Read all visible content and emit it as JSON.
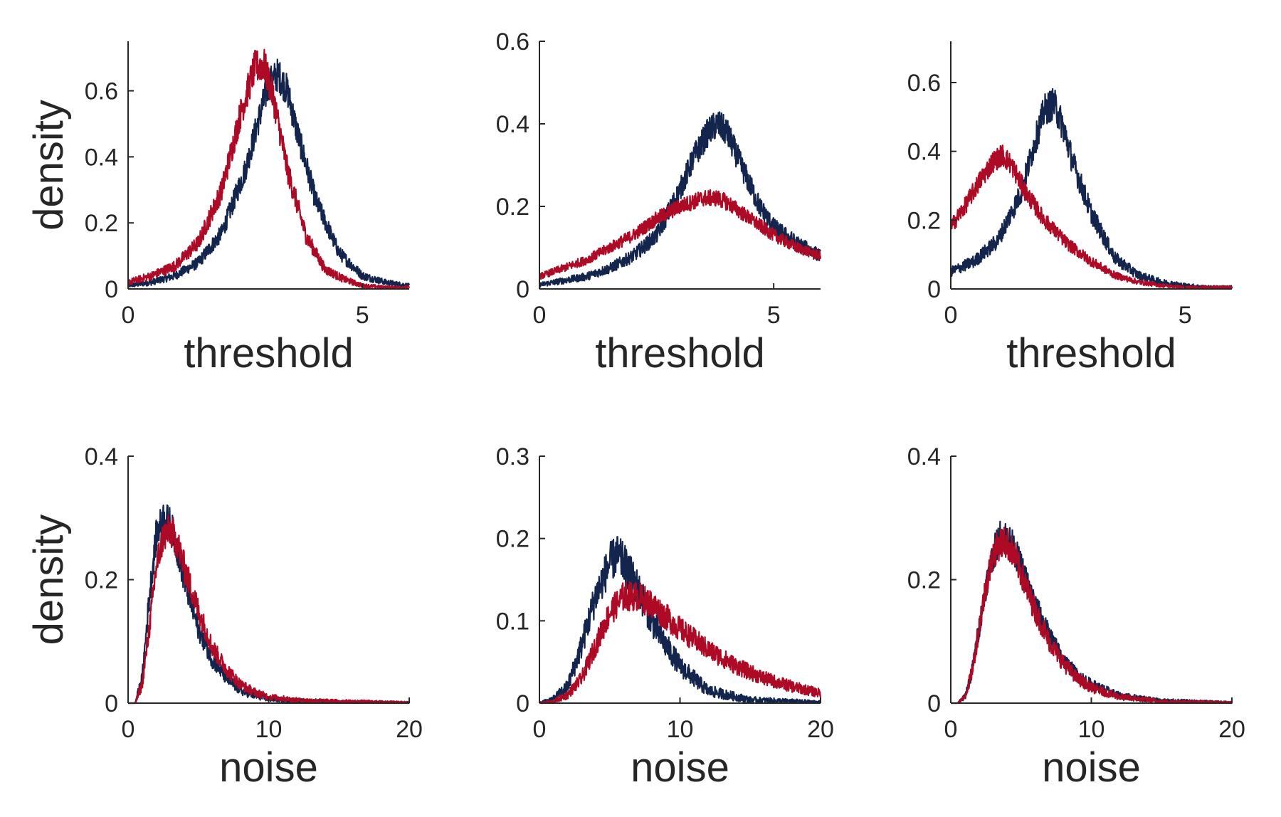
{
  "colors": {
    "navy": "#14254d",
    "red": "#ad0a26",
    "axis": "#262626"
  },
  "chart_data": [
    {
      "type": "line",
      "xlabel": "threshold",
      "ylabel": "density",
      "xlim": [
        0,
        6
      ],
      "ylim": [
        0,
        0.75
      ],
      "xticks": [
        0,
        5
      ],
      "yticks": [
        0,
        0.2,
        0.4,
        0.6
      ],
      "xtick_labels": [
        "0",
        "5"
      ],
      "ytick_labels": [
        "0",
        "0.2",
        "0.4",
        "0.6"
      ],
      "grid": false,
      "legend": "none",
      "series": [
        {
          "color": "#14254d",
          "noise": 0.05,
          "x": [
            0,
            0.5,
            1,
            1.5,
            2,
            2.5,
            2.8,
            3.0,
            3.2,
            3.4,
            3.6,
            4.0,
            4.5,
            5.0,
            5.5,
            6.0
          ],
          "y": [
            0.01,
            0.02,
            0.04,
            0.08,
            0.17,
            0.36,
            0.52,
            0.62,
            0.65,
            0.6,
            0.48,
            0.27,
            0.11,
            0.04,
            0.02,
            0.01
          ]
        },
        {
          "color": "#ad0a26",
          "noise": 0.05,
          "x": [
            0,
            0.5,
            1,
            1.5,
            2,
            2.4,
            2.7,
            2.9,
            3.1,
            3.4,
            3.8,
            4.2,
            4.6,
            5.0,
            5.5,
            6.0
          ],
          "y": [
            0.02,
            0.04,
            0.07,
            0.14,
            0.3,
            0.53,
            0.67,
            0.68,
            0.58,
            0.36,
            0.16,
            0.06,
            0.03,
            0.01,
            0.005,
            0.005
          ]
        }
      ]
    },
    {
      "type": "line",
      "xlabel": "threshold",
      "ylabel": "",
      "xlim": [
        0,
        6
      ],
      "ylim": [
        0,
        0.6
      ],
      "xticks": [
        0,
        5
      ],
      "yticks": [
        0,
        0.2,
        0.4,
        0.6
      ],
      "xtick_labels": [
        "0",
        "5"
      ],
      "ytick_labels": [
        "0",
        "0.2",
        "0.4",
        "0.6"
      ],
      "grid": false,
      "legend": "none",
      "series": [
        {
          "color": "#14254d",
          "noise": 0.04,
          "x": [
            0,
            0.5,
            1,
            1.5,
            2,
            2.5,
            3.0,
            3.3,
            3.6,
            3.8,
            4.0,
            4.3,
            4.7,
            5.0,
            5.5,
            6.0
          ],
          "y": [
            0.01,
            0.02,
            0.03,
            0.05,
            0.08,
            0.13,
            0.24,
            0.32,
            0.38,
            0.4,
            0.38,
            0.3,
            0.2,
            0.15,
            0.11,
            0.08
          ]
        },
        {
          "color": "#ad0a26",
          "noise": 0.03,
          "x": [
            0,
            0.5,
            1,
            1.5,
            2,
            2.5,
            3.0,
            3.5,
            3.8,
            4.0,
            4.5,
            5.0,
            5.5,
            6.0
          ],
          "y": [
            0.03,
            0.05,
            0.07,
            0.1,
            0.13,
            0.17,
            0.2,
            0.22,
            0.22,
            0.21,
            0.17,
            0.13,
            0.1,
            0.08
          ]
        }
      ]
    },
    {
      "type": "line",
      "xlabel": "threshold",
      "ylabel": "",
      "xlim": [
        0,
        6
      ],
      "ylim": [
        0,
        0.72
      ],
      "xticks": [
        0,
        5
      ],
      "yticks": [
        0,
        0.2,
        0.4,
        0.6
      ],
      "xtick_labels": [
        "0",
        "5"
      ],
      "ytick_labels": [
        "0",
        "0.2",
        "0.4",
        "0.6"
      ],
      "grid": false,
      "legend": "none",
      "series": [
        {
          "color": "#14254d",
          "noise": 0.05,
          "x": [
            0,
            0.5,
            1.0,
            1.5,
            1.8,
            2.0,
            2.2,
            2.4,
            2.6,
            3.0,
            3.5,
            4.0,
            4.5,
            5.0,
            5.5,
            6.0
          ],
          "y": [
            0.05,
            0.08,
            0.14,
            0.28,
            0.43,
            0.52,
            0.54,
            0.47,
            0.37,
            0.22,
            0.09,
            0.04,
            0.02,
            0.01,
            0.005,
            0.005
          ]
        },
        {
          "color": "#ad0a26",
          "noise": 0.04,
          "x": [
            0,
            0.3,
            0.6,
            0.9,
            1.1,
            1.3,
            1.6,
            2.0,
            2.5,
            3.0,
            3.5,
            4.0,
            4.5,
            5.0,
            6.0
          ],
          "y": [
            0.18,
            0.24,
            0.31,
            0.37,
            0.39,
            0.36,
            0.28,
            0.2,
            0.13,
            0.08,
            0.04,
            0.02,
            0.01,
            0.005,
            0.005
          ]
        }
      ]
    },
    {
      "type": "line",
      "xlabel": "noise",
      "ylabel": "density",
      "xlim": [
        0,
        20
      ],
      "ylim": [
        0,
        0.4
      ],
      "xticks": [
        0,
        10,
        20
      ],
      "yticks": [
        0,
        0.2,
        0.4
      ],
      "xtick_labels": [
        "0",
        "10",
        "20"
      ],
      "ytick_labels": [
        "0",
        "0.2",
        "0.4"
      ],
      "grid": false,
      "legend": "none",
      "series": [
        {
          "color": "#14254d",
          "noise": 0.03,
          "x": [
            0,
            0.5,
            1.0,
            1.5,
            2.0,
            2.5,
            3.0,
            3.5,
            4.0,
            5.0,
            6.0,
            7.0,
            8.0,
            9.0,
            10.0,
            12.0,
            15.0,
            20.0
          ],
          "y": [
            0,
            0,
            0.04,
            0.17,
            0.27,
            0.3,
            0.29,
            0.25,
            0.2,
            0.12,
            0.07,
            0.04,
            0.02,
            0.012,
            0.007,
            0.004,
            0.002,
            0.001
          ]
        },
        {
          "color": "#ad0a26",
          "noise": 0.03,
          "x": [
            0,
            0.5,
            1.0,
            1.5,
            2.0,
            2.5,
            3.0,
            3.5,
            4.0,
            5.0,
            6.0,
            7.0,
            8.0,
            9.0,
            10.0,
            12.0,
            15.0,
            20.0
          ],
          "y": [
            0,
            0,
            0.03,
            0.12,
            0.22,
            0.27,
            0.28,
            0.26,
            0.22,
            0.15,
            0.09,
            0.055,
            0.03,
            0.018,
            0.01,
            0.005,
            0.003,
            0.001
          ]
        }
      ]
    },
    {
      "type": "line",
      "xlabel": "noise",
      "ylabel": "",
      "xlim": [
        0,
        20
      ],
      "ylim": [
        0,
        0.3
      ],
      "xticks": [
        0,
        10,
        20
      ],
      "yticks": [
        0,
        0.1,
        0.2,
        0.3
      ],
      "xtick_labels": [
        "0",
        "10",
        "20"
      ],
      "ytick_labels": [
        "0",
        "0.1",
        "0.2",
        "0.3"
      ],
      "grid": false,
      "legend": "none",
      "series": [
        {
          "color": "#14254d",
          "noise": 0.03,
          "x": [
            0,
            1,
            2,
            3,
            4,
            5,
            5.5,
            6,
            7,
            8,
            9,
            10,
            12,
            15,
            20
          ],
          "y": [
            0,
            0.005,
            0.02,
            0.07,
            0.13,
            0.17,
            0.18,
            0.17,
            0.14,
            0.1,
            0.07,
            0.045,
            0.015,
            0.004,
            0.001
          ]
        },
        {
          "color": "#ad0a26",
          "noise": 0.025,
          "x": [
            0,
            1,
            2,
            3,
            4,
            5,
            6,
            7,
            8,
            9,
            10,
            12,
            14,
            16,
            18,
            20
          ],
          "y": [
            0,
            0.002,
            0.01,
            0.03,
            0.07,
            0.11,
            0.13,
            0.13,
            0.12,
            0.105,
            0.09,
            0.065,
            0.045,
            0.03,
            0.02,
            0.012
          ]
        }
      ]
    },
    {
      "type": "line",
      "xlabel": "noise",
      "ylabel": "",
      "xlim": [
        0,
        20
      ],
      "ylim": [
        0,
        0.4
      ],
      "xticks": [
        0,
        10,
        20
      ],
      "yticks": [
        0,
        0.2,
        0.4
      ],
      "xtick_labels": [
        "0",
        "10",
        "20"
      ],
      "ytick_labels": [
        "0",
        "0.2",
        "0.4"
      ],
      "grid": false,
      "legend": "none",
      "series": [
        {
          "color": "#14254d",
          "noise": 0.03,
          "x": [
            0,
            0.5,
            1.0,
            1.5,
            2.0,
            2.5,
            3.0,
            3.5,
            4.0,
            4.5,
            5.0,
            6.0,
            7.0,
            8.0,
            9.0,
            10.0,
            12.0,
            15.0,
            20.0
          ],
          "y": [
            0,
            0,
            0.01,
            0.05,
            0.12,
            0.19,
            0.24,
            0.27,
            0.27,
            0.25,
            0.22,
            0.16,
            0.11,
            0.07,
            0.045,
            0.03,
            0.012,
            0.004,
            0.001
          ]
        },
        {
          "color": "#ad0a26",
          "noise": 0.03,
          "x": [
            0,
            0.5,
            1.0,
            1.5,
            2.0,
            2.5,
            3.0,
            3.5,
            4.0,
            4.5,
            5.0,
            6.0,
            7.0,
            8.0,
            9.0,
            10.0,
            12.0,
            15.0,
            20.0
          ],
          "y": [
            0,
            0,
            0.01,
            0.05,
            0.12,
            0.19,
            0.24,
            0.26,
            0.26,
            0.24,
            0.21,
            0.15,
            0.1,
            0.065,
            0.04,
            0.025,
            0.01,
            0.003,
            0.001
          ]
        }
      ]
    }
  ]
}
